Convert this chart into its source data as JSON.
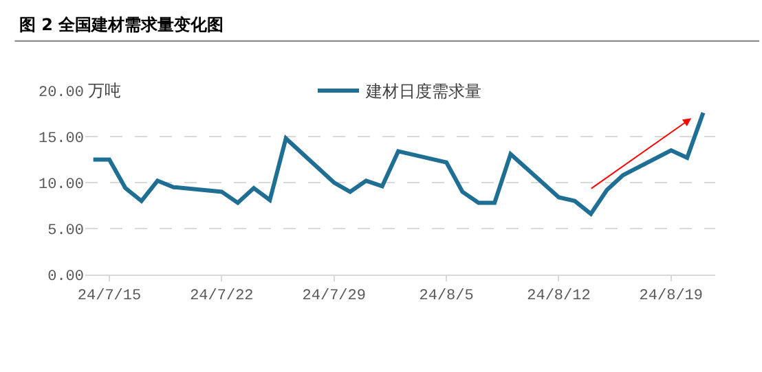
{
  "chart_data": {
    "type": "line",
    "title": "图 2 全国建材需求量变化图",
    "ylabel": "万吨",
    "x": [
      "--07-14",
      "--07-15",
      "--07-16",
      "--07-17",
      "--07-18",
      "--07-19",
      "--07-22",
      "--07-23",
      "--07-24",
      "--07-25",
      "--07-26",
      "--07-29",
      "--07-30",
      "--07-31",
      "--08-01",
      "--08-02",
      "--08-05",
      "--08-06",
      "--08-07",
      "--08-08",
      "--08-09",
      "--08-12",
      "--08-13",
      "--08-14",
      "--08-15",
      "--08-16",
      "--08-19",
      "--08-20",
      "--08-21"
    ],
    "series": [
      {
        "name": "建材日度需求量",
        "color": "#1f6e94",
        "values": [
          12.5,
          12.5,
          9.4,
          8.0,
          10.2,
          9.5,
          9.0,
          7.8,
          9.4,
          8.1,
          14.8,
          10.0,
          9.0,
          10.2,
          9.6,
          13.4,
          12.2,
          9.0,
          7.8,
          7.8,
          13.1,
          8.4,
          8.0,
          6.6,
          9.2,
          10.8,
          13.5,
          12.7,
          17.6
        ]
      }
    ],
    "xlim": [
      "--07-13T12:00",
      "--08-21T18:00"
    ],
    "xticks": [
      {
        "value": "--07-15",
        "label": "24/7/15"
      },
      {
        "value": "--07-22",
        "label": "24/7/22"
      },
      {
        "value": "--07-29",
        "label": "24/7/29"
      },
      {
        "value": "--08-05",
        "label": "24/8/5"
      },
      {
        "value": "--08-12",
        "label": "24/8/12"
      },
      {
        "value": "--08-19",
        "label": "24/8/19"
      }
    ],
    "ylim": [
      0,
      20
    ],
    "yticks": [
      {
        "value": 0,
        "label": "0.00"
      },
      {
        "value": 5,
        "label": "5.00"
      },
      {
        "value": 10,
        "label": "10.00"
      },
      {
        "value": 15,
        "label": "15.00"
      },
      {
        "value": 20,
        "label": "20.00"
      }
    ],
    "grid": "y",
    "legend": "top",
    "line_style": "solid",
    "marker": "none"
  }
}
